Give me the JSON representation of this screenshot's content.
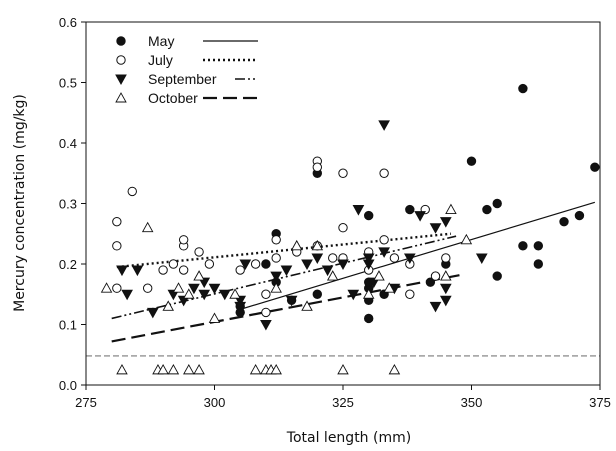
{
  "chart_data": {
    "type": "scatter",
    "title": "",
    "xlabel": "Total length (mm)",
    "ylabel": "Mercury concentration (mg/kg)",
    "xlim": [
      275,
      375
    ],
    "ylim": [
      0.0,
      0.6
    ],
    "x_ticks": [
      275,
      300,
      325,
      350,
      375
    ],
    "y_ticks": [
      0.0,
      0.1,
      0.2,
      0.3,
      0.4,
      0.5,
      0.6
    ],
    "x_tick_labels": [
      "275",
      "300",
      "325",
      "350",
      "375"
    ],
    "y_tick_labels": [
      "0.0",
      "0.1",
      "0.2",
      "0.3",
      "0.4",
      "0.5",
      "0.6"
    ],
    "grid": false,
    "legend_position": "top-left",
    "reference_line": {
      "y": 0.048,
      "style": "dashed"
    },
    "series": [
      {
        "name": "May",
        "marker": "filled-circle",
        "line_style": "solid",
        "color": "#111111",
        "fit": {
          "x": [
            305,
            374
          ],
          "y": [
            0.125,
            0.302
          ]
        },
        "points": [
          [
            305,
            0.12
          ],
          [
            305,
            0.13
          ],
          [
            310,
            0.2
          ],
          [
            312,
            0.17
          ],
          [
            312,
            0.25
          ],
          [
            315,
            0.14
          ],
          [
            320,
            0.15
          ],
          [
            320,
            0.35
          ],
          [
            330,
            0.11
          ],
          [
            330,
            0.14
          ],
          [
            330,
            0.16
          ],
          [
            330,
            0.17
          ],
          [
            330,
            0.28
          ],
          [
            333,
            0.15
          ],
          [
            338,
            0.29
          ],
          [
            342,
            0.17
          ],
          [
            345,
            0.2
          ],
          [
            350,
            0.37
          ],
          [
            353,
            0.29
          ],
          [
            355,
            0.18
          ],
          [
            355,
            0.3
          ],
          [
            360,
            0.49
          ],
          [
            360,
            0.23
          ],
          [
            363,
            0.23
          ],
          [
            363,
            0.2
          ],
          [
            368,
            0.27
          ],
          [
            371,
            0.28
          ],
          [
            374,
            0.36
          ]
        ]
      },
      {
        "name": "July",
        "marker": "open-circle",
        "line_style": "dotted",
        "color": "#111111",
        "fit": {
          "x": [
            281,
            346
          ],
          "y": [
            0.195,
            0.25
          ]
        },
        "points": [
          [
            281,
            0.16
          ],
          [
            281,
            0.23
          ],
          [
            281,
            0.27
          ],
          [
            284,
            0.32
          ],
          [
            287,
            0.16
          ],
          [
            290,
            0.19
          ],
          [
            292,
            0.2
          ],
          [
            294,
            0.23
          ],
          [
            294,
            0.24
          ],
          [
            294,
            0.19
          ],
          [
            297,
            0.22
          ],
          [
            299,
            0.2
          ],
          [
            305,
            0.19
          ],
          [
            308,
            0.2
          ],
          [
            310,
            0.12
          ],
          [
            310,
            0.15
          ],
          [
            312,
            0.21
          ],
          [
            312,
            0.24
          ],
          [
            316,
            0.22
          ],
          [
            320,
            0.37
          ],
          [
            320,
            0.36
          ],
          [
            320,
            0.23
          ],
          [
            323,
            0.21
          ],
          [
            325,
            0.35
          ],
          [
            325,
            0.26
          ],
          [
            325,
            0.21
          ],
          [
            330,
            0.19
          ],
          [
            330,
            0.22
          ],
          [
            333,
            0.35
          ],
          [
            333,
            0.24
          ],
          [
            335,
            0.21
          ],
          [
            338,
            0.2
          ],
          [
            338,
            0.15
          ],
          [
            341,
            0.29
          ],
          [
            343,
            0.18
          ],
          [
            345,
            0.21
          ]
        ]
      },
      {
        "name": "September",
        "marker": "filled-down-triangle",
        "line_style": "dash-dot-dot",
        "color": "#111111",
        "fit": {
          "x": [
            280,
            347
          ],
          "y": [
            0.11,
            0.246
          ]
        },
        "points": [
          [
            282,
            0.19
          ],
          [
            283,
            0.15
          ],
          [
            285,
            0.19
          ],
          [
            288,
            0.12
          ],
          [
            292,
            0.15
          ],
          [
            294,
            0.14
          ],
          [
            296,
            0.16
          ],
          [
            298,
            0.15
          ],
          [
            298,
            0.17
          ],
          [
            300,
            0.16
          ],
          [
            302,
            0.15
          ],
          [
            305,
            0.14
          ],
          [
            305,
            0.13
          ],
          [
            306,
            0.2
          ],
          [
            310,
            0.1
          ],
          [
            312,
            0.18
          ],
          [
            314,
            0.19
          ],
          [
            315,
            0.14
          ],
          [
            318,
            0.2
          ],
          [
            320,
            0.21
          ],
          [
            322,
            0.19
          ],
          [
            325,
            0.2
          ],
          [
            327,
            0.15
          ],
          [
            328,
            0.29
          ],
          [
            330,
            0.2
          ],
          [
            330,
            0.21
          ],
          [
            331,
            0.17
          ],
          [
            333,
            0.43
          ],
          [
            333,
            0.22
          ],
          [
            335,
            0.16
          ],
          [
            338,
            0.21
          ],
          [
            340,
            0.28
          ],
          [
            343,
            0.13
          ],
          [
            343,
            0.26
          ],
          [
            345,
            0.14
          ],
          [
            345,
            0.27
          ],
          [
            345,
            0.16
          ],
          [
            352,
            0.21
          ]
        ]
      },
      {
        "name": "October",
        "marker": "open-up-triangle",
        "line_style": "long-dash",
        "color": "#111111",
        "fit": {
          "x": [
            280,
            348
          ],
          "y": [
            0.072,
            0.182
          ]
        },
        "points": [
          [
            279,
            0.16
          ],
          [
            282,
            0.025
          ],
          [
            287,
            0.26
          ],
          [
            289,
            0.025
          ],
          [
            290,
            0.025
          ],
          [
            292,
            0.025
          ],
          [
            291,
            0.13
          ],
          [
            293,
            0.16
          ],
          [
            295,
            0.15
          ],
          [
            295,
            0.025
          ],
          [
            297,
            0.18
          ],
          [
            297,
            0.025
          ],
          [
            300,
            0.11
          ],
          [
            304,
            0.15
          ],
          [
            308,
            0.025
          ],
          [
            310,
            0.025
          ],
          [
            311,
            0.025
          ],
          [
            312,
            0.025
          ],
          [
            312,
            0.16
          ],
          [
            316,
            0.23
          ],
          [
            318,
            0.13
          ],
          [
            320,
            0.23
          ],
          [
            323,
            0.18
          ],
          [
            325,
            0.025
          ],
          [
            330,
            0.15
          ],
          [
            332,
            0.18
          ],
          [
            334,
            0.16
          ],
          [
            335,
            0.025
          ],
          [
            345,
            0.18
          ],
          [
            346,
            0.29
          ],
          [
            349,
            0.24
          ]
        ]
      }
    ]
  }
}
